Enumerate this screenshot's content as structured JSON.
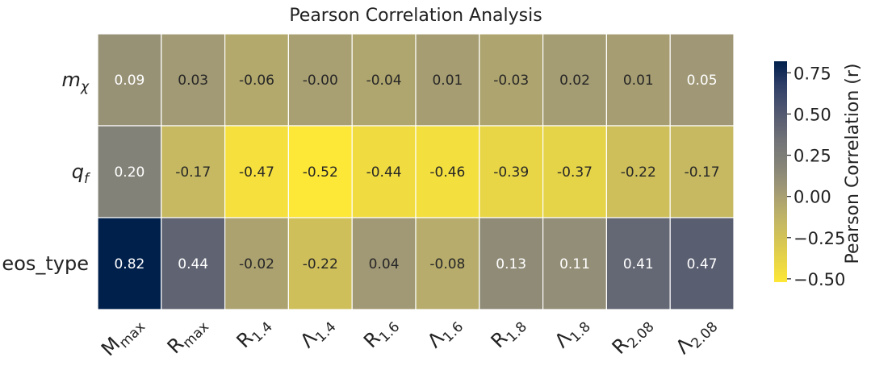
{
  "chart_data": {
    "type": "heatmap",
    "title": "Pearson Correlation Analysis",
    "rows": [
      {
        "label": "m",
        "sub": "χ",
        "italic": true
      },
      {
        "label": "q",
        "sub": "f",
        "italic": true
      },
      {
        "label": "eos_type",
        "sub": "",
        "italic": false
      }
    ],
    "columns": [
      {
        "label": "M",
        "sub": "max"
      },
      {
        "label": "R",
        "sub": "max"
      },
      {
        "label": "R",
        "sub": "1.4"
      },
      {
        "label": "Λ",
        "sub": "1.4"
      },
      {
        "label": "R",
        "sub": "1.6"
      },
      {
        "label": "Λ",
        "sub": "1.6"
      },
      {
        "label": "R",
        "sub": "1.8"
      },
      {
        "label": "Λ",
        "sub": "1.8"
      },
      {
        "label": "R",
        "sub": "2.08"
      },
      {
        "label": "Λ",
        "sub": "2.08"
      }
    ],
    "values": [
      [
        0.09,
        0.03,
        -0.06,
        -0.0,
        -0.04,
        0.01,
        -0.03,
        0.02,
        0.01,
        0.05
      ],
      [
        0.2,
        -0.17,
        -0.47,
        -0.52,
        -0.44,
        -0.46,
        -0.39,
        -0.37,
        -0.22,
        -0.17
      ],
      [
        0.82,
        0.44,
        -0.02,
        -0.22,
        0.04,
        -0.08,
        0.13,
        0.11,
        0.41,
        0.47
      ]
    ],
    "value_labels": [
      [
        "0.09",
        "0.03",
        "-0.06",
        "-0.00",
        "-0.04",
        "0.01",
        "-0.03",
        "0.02",
        "0.01",
        "0.05"
      ],
      [
        "0.20",
        "-0.17",
        "-0.47",
        "-0.52",
        "-0.44",
        "-0.46",
        "-0.39",
        "-0.37",
        "-0.22",
        "-0.17"
      ],
      [
        "0.82",
        "0.44",
        "-0.02",
        "-0.22",
        "0.04",
        "-0.08",
        "0.13",
        "0.11",
        "0.41",
        "0.47"
      ]
    ],
    "colorscale": "cividis_r",
    "vmin": -0.52,
    "vmax": 0.82,
    "colorbar": {
      "label": "Pearson Correlation (r)",
      "ticks": [
        0.75,
        0.5,
        0.25,
        0.0,
        -0.25,
        -0.5
      ],
      "tick_labels": [
        "0.75",
        "0.50",
        "0.25",
        "0.00",
        "−0.25",
        "−0.50"
      ]
    }
  }
}
